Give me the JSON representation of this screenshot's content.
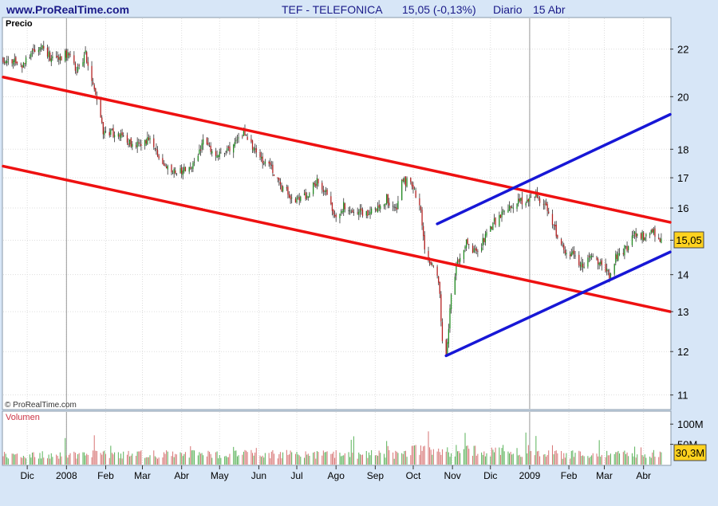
{
  "header": {
    "site": "www.ProRealTime.com",
    "instrument": "TEF - TELEFONICA",
    "quote": "15,05 (-0,13%)",
    "period": "Diario",
    "date": "15 Abr"
  },
  "price_panel": {
    "label": "Precio",
    "copyright": "© ProRealTime.com",
    "last_label": "15,05"
  },
  "volume_panel": {
    "label": "Volumen",
    "last_label": "30,3M"
  },
  "colors": {
    "background": "#d7e6f7",
    "plot": "#ffffff",
    "grid": "#dddddd",
    "up_candle": "#1e8a1e",
    "down_candle": "#b41e1e",
    "neutral_candle": "#222222",
    "red_channel": "#ee1111",
    "blue_channel": "#1717d6",
    "header_text": "#1a1a88",
    "volume_label": "#cc3344",
    "last_box": "#ffd21e"
  },
  "chart_data": {
    "type": "candlestick",
    "timeframe": "Diario",
    "x_range": [
      "2007-11-12",
      "2009-04-22"
    ],
    "x_ticks": [
      {
        "date": "2007-12-01",
        "label": "Dic"
      },
      {
        "date": "2008-01-01",
        "label": "2008"
      },
      {
        "date": "2008-02-01",
        "label": "Feb"
      },
      {
        "date": "2008-03-01",
        "label": "Mar"
      },
      {
        "date": "2008-04-01",
        "label": "Abr"
      },
      {
        "date": "2008-05-01",
        "label": "May"
      },
      {
        "date": "2008-06-01",
        "label": "Jun"
      },
      {
        "date": "2008-07-01",
        "label": "Jul"
      },
      {
        "date": "2008-08-01",
        "label": "Ago"
      },
      {
        "date": "2008-09-01",
        "label": "Sep"
      },
      {
        "date": "2008-10-01",
        "label": "Oct"
      },
      {
        "date": "2008-11-01",
        "label": "Nov"
      },
      {
        "date": "2008-12-01",
        "label": "Dic"
      },
      {
        "date": "2009-01-01",
        "label": "2009"
      },
      {
        "date": "2009-02-01",
        "label": "Feb"
      },
      {
        "date": "2009-03-01",
        "label": "Mar"
      },
      {
        "date": "2009-04-01",
        "label": "Abr"
      }
    ],
    "year_separators": [
      "2008-01-01",
      "2009-01-01"
    ],
    "price_axis": {
      "scale": "log",
      "range": [
        10.7,
        23.4
      ],
      "ticks": [
        {
          "value": 11,
          "label": "11"
        },
        {
          "value": 12,
          "label": "12"
        },
        {
          "value": 13,
          "label": "13"
        },
        {
          "value": 14,
          "label": "14"
        },
        {
          "value": 15,
          "label": "15"
        },
        {
          "value": 16,
          "label": "16"
        },
        {
          "value": 17,
          "label": "17"
        },
        {
          "value": 18,
          "label": "18"
        },
        {
          "value": 20,
          "label": "20"
        },
        {
          "value": 22,
          "label": "22"
        }
      ]
    },
    "last_price": 15.05,
    "change_percent": -0.13,
    "price_path": [
      [
        "2007-11-12",
        21.6
      ],
      [
        "2007-11-26",
        21.3
      ],
      [
        "2007-12-05",
        21.8
      ],
      [
        "2007-12-12",
        22.2
      ],
      [
        "2007-12-21",
        21.5
      ],
      [
        "2008-01-02",
        21.8
      ],
      [
        "2008-01-09",
        21.1
      ],
      [
        "2008-01-16",
        21.8
      ],
      [
        "2008-01-23",
        20.4
      ],
      [
        "2008-01-30",
        18.7
      ],
      [
        "2008-02-12",
        18.5
      ],
      [
        "2008-02-25",
        18.1
      ],
      [
        "2008-03-06",
        18.4
      ],
      [
        "2008-03-14",
        17.7
      ],
      [
        "2008-03-26",
        17.2
      ],
      [
        "2008-04-09",
        17.4
      ],
      [
        "2008-04-18",
        18.3
      ],
      [
        "2008-04-28",
        17.8
      ],
      [
        "2008-05-08",
        17.9
      ],
      [
        "2008-05-20",
        18.6
      ],
      [
        "2008-05-30",
        17.8
      ],
      [
        "2008-06-10",
        17.4
      ],
      [
        "2008-06-20",
        16.6
      ],
      [
        "2008-06-30",
        16.3
      ],
      [
        "2008-07-10",
        16.4
      ],
      [
        "2008-07-17",
        16.9
      ],
      [
        "2008-07-25",
        16.5
      ],
      [
        "2008-07-31",
        15.8
      ],
      [
        "2008-08-08",
        16.1
      ],
      [
        "2008-08-15",
        15.9
      ],
      [
        "2008-08-25",
        15.8
      ],
      [
        "2008-09-03",
        16.0
      ],
      [
        "2008-09-10",
        16.3
      ],
      [
        "2008-09-18",
        15.9
      ],
      [
        "2008-09-22",
        16.9
      ],
      [
        "2008-09-29",
        16.8
      ],
      [
        "2008-10-06",
        16.2
      ],
      [
        "2008-10-10",
        14.8
      ],
      [
        "2008-10-16",
        14.2
      ],
      [
        "2008-10-21",
        13.9
      ],
      [
        "2008-10-24",
        12.3
      ],
      [
        "2008-10-27",
        11.9
      ],
      [
        "2008-10-31",
        13.4
      ],
      [
        "2008-11-05",
        14.4
      ],
      [
        "2008-11-12",
        14.9
      ],
      [
        "2008-11-20",
        14.6
      ],
      [
        "2008-11-28",
        15.2
      ],
      [
        "2008-12-05",
        15.6
      ],
      [
        "2008-12-15",
        16.0
      ],
      [
        "2008-12-23",
        16.2
      ],
      [
        "2009-01-05",
        16.4
      ],
      [
        "2009-01-12",
        16.2
      ],
      [
        "2009-01-19",
        15.5
      ],
      [
        "2009-01-26",
        14.8
      ],
      [
        "2009-02-03",
        14.6
      ],
      [
        "2009-02-12",
        14.2
      ],
      [
        "2009-02-19",
        14.6
      ],
      [
        "2009-02-26",
        14.3
      ],
      [
        "2009-03-05",
        14.0
      ],
      [
        "2009-03-10",
        14.5
      ],
      [
        "2009-03-19",
        14.8
      ],
      [
        "2009-03-26",
        15.2
      ],
      [
        "2009-04-02",
        15.1
      ],
      [
        "2009-04-08",
        15.3
      ],
      [
        "2009-04-15",
        15.05
      ]
    ],
    "trend_lines": [
      {
        "color": "red",
        "points": [
          [
            "2007-11-12",
            20.8
          ],
          [
            "2009-04-22",
            15.55
          ]
        ]
      },
      {
        "color": "red",
        "points": [
          [
            "2007-11-12",
            17.4
          ],
          [
            "2009-04-22",
            13.0
          ]
        ]
      },
      {
        "color": "blue",
        "points": [
          [
            "2008-10-20",
            15.5
          ],
          [
            "2009-04-22",
            19.3
          ]
        ]
      },
      {
        "color": "blue",
        "points": [
          [
            "2008-10-27",
            11.9
          ],
          [
            "2009-04-22",
            14.65
          ]
        ]
      }
    ],
    "volume_axis": {
      "range": [
        0,
        130
      ],
      "ticks": [
        {
          "value": 50,
          "label": "50M"
        },
        {
          "value": 100,
          "label": "100M"
        }
      ]
    },
    "last_volume": 30.3
  }
}
